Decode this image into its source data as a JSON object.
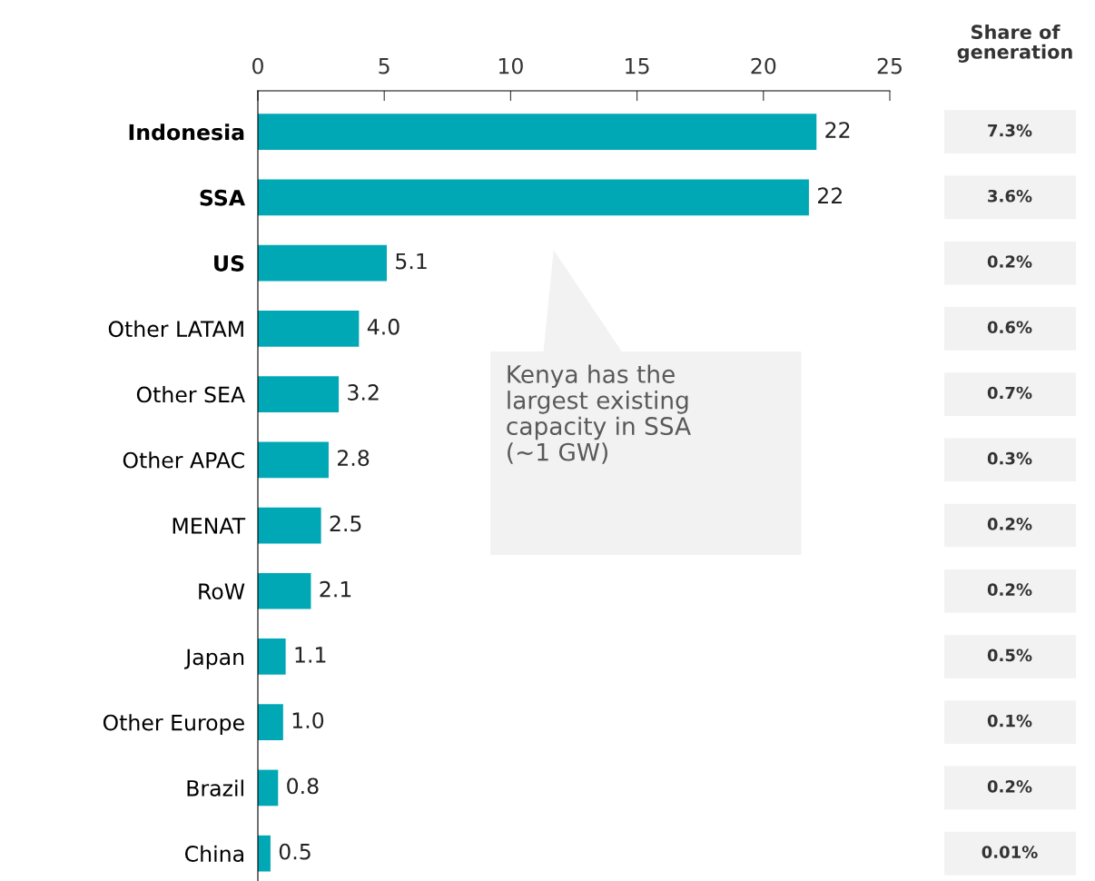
{
  "chart_data": {
    "type": "bar",
    "orientation": "horizontal",
    "categories": [
      "Indonesia",
      "SSA",
      "US",
      "Other LATAM",
      "Other SEA",
      "Other APAC",
      "MENAT",
      "RoW",
      "Japan",
      "Other Europe",
      "Brazil",
      "China"
    ],
    "values": [
      22.1,
      21.8,
      5.1,
      4.0,
      3.2,
      2.8,
      2.5,
      2.1,
      1.1,
      1.0,
      0.8,
      0.5
    ],
    "value_labels": [
      "22",
      "22",
      "5.1",
      "4.0",
      "3.2",
      "2.8",
      "2.5",
      "2.1",
      "1.1",
      "1.0",
      "0.8",
      "0.5"
    ],
    "color": "#00a8b5",
    "xlim": [
      0,
      25
    ],
    "xticks": [
      0,
      5,
      10,
      15,
      20,
      25
    ],
    "grid": false,
    "legend": false,
    "annotations": [
      "Kenya has the\nlargest existing\ncapacity in SSA\n(~1 GW)",
      "Share of\ngeneration",
      "7.3%",
      "3.6%",
      "0.2%",
      "0.6%",
      "0.7%",
      "0.3%",
      "0.2%",
      "0.2%",
      "0.5%",
      "0.1%",
      "0.2%",
      "0.01%"
    ]
  }
}
